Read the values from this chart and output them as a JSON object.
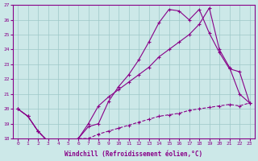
{
  "xlabel": "Windchill (Refroidissement éolien,°C)",
  "background_color": "#cce8e8",
  "grid_color": "#9ec8c8",
  "line_color": "#880088",
  "xlim": [
    -0.5,
    23.5
  ],
  "ylim": [
    18,
    27
  ],
  "yticks": [
    18,
    19,
    20,
    21,
    22,
    23,
    24,
    25,
    26,
    27
  ],
  "xticks": [
    0,
    1,
    2,
    3,
    4,
    5,
    6,
    7,
    8,
    9,
    10,
    11,
    12,
    13,
    14,
    15,
    16,
    17,
    18,
    19,
    20,
    21,
    22,
    23
  ],
  "line1_x": [
    0,
    1,
    2,
    3,
    4,
    5,
    6,
    7,
    8,
    9,
    10,
    11,
    12,
    13,
    14,
    15,
    16,
    17,
    18,
    19,
    20,
    21,
    22,
    23
  ],
  "line1_y": [
    20.0,
    19.5,
    18.5,
    17.8,
    17.8,
    17.8,
    18.0,
    18.8,
    19.0,
    20.5,
    21.5,
    22.3,
    23.3,
    24.5,
    25.8,
    26.7,
    26.6,
    26.0,
    26.7,
    25.1,
    23.8,
    22.7,
    22.5,
    20.4
  ],
  "line2_x": [
    0,
    1,
    2,
    3,
    4,
    5,
    6,
    7,
    8,
    9,
    10,
    11,
    12,
    13,
    14,
    15,
    16,
    17,
    18,
    19,
    20,
    21,
    22,
    23
  ],
  "line2_y": [
    20.0,
    19.5,
    18.5,
    17.8,
    17.8,
    17.8,
    18.0,
    19.0,
    20.2,
    20.8,
    21.3,
    21.8,
    22.3,
    22.8,
    23.5,
    24.0,
    24.5,
    25.0,
    25.7,
    26.8,
    24.0,
    22.8,
    21.0,
    20.4
  ],
  "line3_x": [
    0,
    1,
    2,
    3,
    4,
    5,
    6,
    7,
    8,
    9,
    10,
    11,
    12,
    13,
    14,
    15,
    16,
    17,
    18,
    19,
    20,
    21,
    22,
    23
  ],
  "line3_y": [
    20.0,
    19.5,
    18.5,
    17.8,
    17.8,
    17.8,
    18.0,
    18.0,
    18.3,
    18.5,
    18.7,
    18.9,
    19.1,
    19.3,
    19.5,
    19.6,
    19.7,
    19.9,
    20.0,
    20.1,
    20.2,
    20.3,
    20.2,
    20.4
  ]
}
